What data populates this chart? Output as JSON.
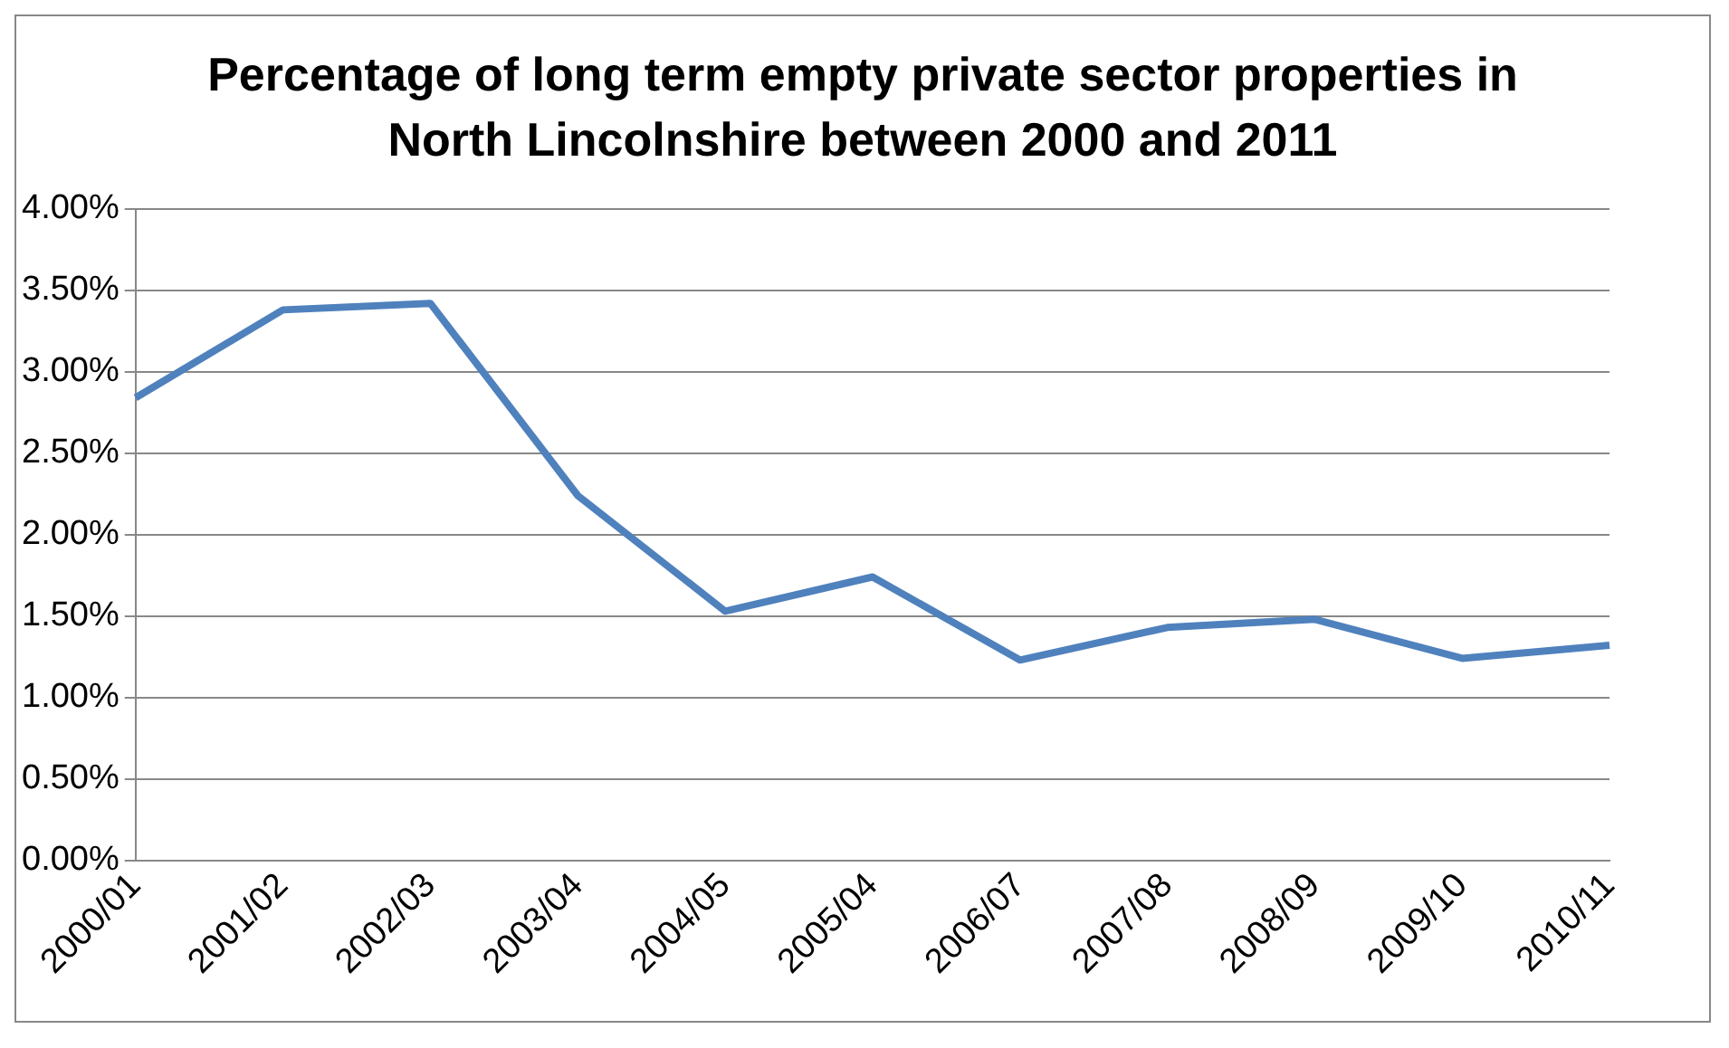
{
  "chart_data": {
    "type": "line",
    "title": "Percentage of long term empty private sector properties in North Lincolnshire between 2000 and 2011",
    "categories": [
      "2000/01",
      "2001/02",
      "2002/03",
      "2003/04",
      "2004/05",
      "2005/04",
      "2006/07",
      "2007/08",
      "2008/09",
      "2009/10",
      "2010/11"
    ],
    "series": [
      {
        "color": "#4f81bd",
        "values": [
          2.84,
          3.38,
          3.42,
          2.24,
          1.53,
          1.74,
          1.23,
          1.43,
          1.48,
          1.24,
          1.32
        ]
      }
    ],
    "ylim": [
      0,
      4
    ],
    "yticks": [
      {
        "value": 0,
        "label": "0.00%"
      },
      {
        "value": 0.5,
        "label": "0.50%"
      },
      {
        "value": 1,
        "label": "1.00%"
      },
      {
        "value": 1.5,
        "label": "1.50%"
      },
      {
        "value": 2,
        "label": "2.00%"
      },
      {
        "value": 2.5,
        "label": "2.50%"
      },
      {
        "value": 3,
        "label": "3.00%"
      },
      {
        "value": 3.5,
        "label": "3.50%"
      },
      {
        "value": 4,
        "label": "4.00%"
      }
    ],
    "grid": "y",
    "legend": false,
    "marker": "none",
    "line_style": "solid"
  }
}
